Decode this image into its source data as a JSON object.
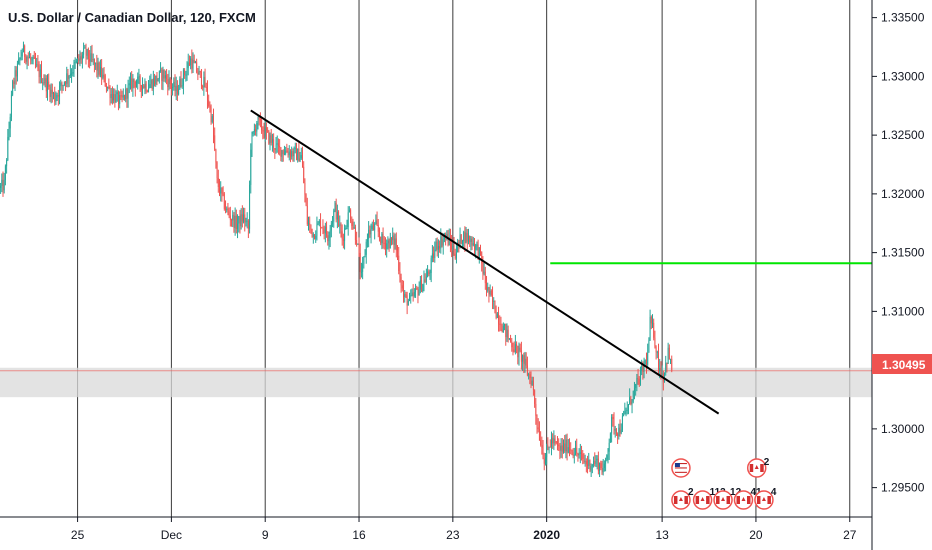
{
  "chart_data": {
    "type": "candlestick",
    "title": "U.S. Dollar / Canadian Dollar, 120, FXCM",
    "colors": {
      "up": "#26a69a",
      "down": "#ef5350",
      "grid": "#3a3a3a",
      "trendline": "#000000",
      "resistance": "#00e600",
      "price_badge": "#ef5350",
      "zone": "#d9d9d9"
    },
    "ylim": [
      1.2925,
      1.3365
    ],
    "yticks": [
      "1.33500",
      "1.33000",
      "1.32500",
      "1.32000",
      "1.31500",
      "1.31000",
      "1.30500",
      "1.30000",
      "1.29500"
    ],
    "xticks": [
      {
        "label": "25",
        "idx": 64,
        "bold": false
      },
      {
        "label": "Dec",
        "idx": 142,
        "bold": false
      },
      {
        "label": "9",
        "idx": 220,
        "bold": false
      },
      {
        "label": "16",
        "idx": 298,
        "bold": false
      },
      {
        "label": "23",
        "idx": 376,
        "bold": false
      },
      {
        "label": "2020",
        "idx": 454,
        "bold": true
      },
      {
        "label": "13",
        "idx": 550,
        "bold": false
      },
      {
        "label": "20",
        "idx": 628,
        "bold": false
      },
      {
        "label": "27",
        "idx": 706,
        "bold": false
      }
    ],
    "n_slots": 725,
    "current_price": "1.30495",
    "current_value": 1.30495,
    "support_zone": [
      1.3027,
      1.3052
    ],
    "resistance_level": 1.3141,
    "resistance_start_idx": 457,
    "trendline": {
      "idx_start": 208,
      "value_start": 1.3271,
      "idx_end": 597,
      "value_end": 1.3013
    },
    "anchors": [
      [
        0,
        1.3205
      ],
      [
        3,
        1.3208
      ],
      [
        10,
        1.3292
      ],
      [
        18,
        1.3322
      ],
      [
        28,
        1.331
      ],
      [
        35,
        1.3298
      ],
      [
        45,
        1.3282
      ],
      [
        55,
        1.33
      ],
      [
        70,
        1.332
      ],
      [
        82,
        1.3305
      ],
      [
        92,
        1.3285
      ],
      [
        100,
        1.3278
      ],
      [
        110,
        1.3296
      ],
      [
        122,
        1.3292
      ],
      [
        135,
        1.3302
      ],
      [
        146,
        1.3287
      ],
      [
        158,
        1.3314
      ],
      [
        170,
        1.3292
      ],
      [
        176,
        1.3262
      ],
      [
        180,
        1.321
      ],
      [
        188,
        1.3185
      ],
      [
        196,
        1.3174
      ],
      [
        202,
        1.318
      ],
      [
        206,
        1.317
      ],
      [
        208,
        1.3242
      ],
      [
        213,
        1.3262
      ],
      [
        220,
        1.3252
      ],
      [
        230,
        1.3238
      ],
      [
        240,
        1.3236
      ],
      [
        250,
        1.3232
      ],
      [
        255,
        1.3176
      ],
      [
        260,
        1.3166
      ],
      [
        266,
        1.3176
      ],
      [
        272,
        1.3164
      ],
      [
        278,
        1.3188
      ],
      [
        284,
        1.3162
      ],
      [
        290,
        1.3185
      ],
      [
        296,
        1.3162
      ],
      [
        300,
        1.3128
      ],
      [
        305,
        1.3166
      ],
      [
        312,
        1.3172
      ],
      [
        318,
        1.3158
      ],
      [
        328,
        1.316
      ],
      [
        335,
        1.3112
      ],
      [
        340,
        1.3108
      ],
      [
        348,
        1.312
      ],
      [
        356,
        1.3132
      ],
      [
        362,
        1.3156
      ],
      [
        370,
        1.3164
      ],
      [
        378,
        1.315
      ],
      [
        384,
        1.3165
      ],
      [
        392,
        1.316
      ],
      [
        398,
        1.315
      ],
      [
        404,
        1.312
      ],
      [
        410,
        1.3105
      ],
      [
        416,
        1.309
      ],
      [
        422,
        1.3078
      ],
      [
        428,
        1.3068
      ],
      [
        434,
        1.306
      ],
      [
        438,
        1.3048
      ],
      [
        442,
        1.304
      ],
      [
        446,
        1.3005
      ],
      [
        452,
        1.2975
      ],
      [
        458,
        1.299
      ],
      [
        465,
        1.2982
      ],
      [
        472,
        1.2986
      ],
      [
        480,
        1.2978
      ],
      [
        488,
        1.297
      ],
      [
        495,
        1.2972
      ],
      [
        502,
        1.2965
      ],
      [
        508,
        1.3005
      ],
      [
        514,
        1.2998
      ],
      [
        520,
        1.3015
      ],
      [
        526,
        1.303
      ],
      [
        532,
        1.3045
      ],
      [
        538,
        1.3062
      ],
      [
        540,
        1.309
      ],
      [
        543,
        1.3082
      ],
      [
        547,
        1.3055
      ],
      [
        551,
        1.3045
      ],
      [
        555,
        1.3065
      ],
      [
        558,
        1.305
      ]
    ],
    "events": {
      "row1": [
        {
          "flag": "us",
          "idx": 559,
          "count": ""
        },
        {
          "flag": "ca",
          "idx": 622,
          "count": "2"
        }
      ],
      "row2": [
        {
          "flag": "ca",
          "idx": 559,
          "count": "2"
        },
        {
          "flag": "ca",
          "idx": 577,
          "count": "113"
        },
        {
          "flag": "ca",
          "idx": 594,
          "count": "12"
        },
        {
          "flag": "ca",
          "idx": 611,
          "count": "41"
        },
        {
          "flag": "ca",
          "idx": 628,
          "count": "4"
        }
      ]
    }
  }
}
